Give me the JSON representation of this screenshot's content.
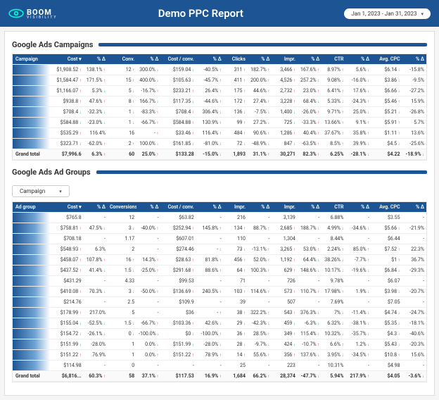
{
  "header": {
    "brand": "BOOM",
    "brand_sub": "VISIBILITY",
    "title": "Demo PPC Report",
    "date_range": "Jan 1, 2023 - Jan 31, 2023"
  },
  "section1": {
    "title": "Google Ads Campaigns",
    "columns": [
      "Campaign",
      "Cost ▾",
      "% Δ",
      "Conv.",
      "% Δ",
      "Cost / conv.",
      "% Δ",
      "Clicks",
      "% Δ",
      "Impr.",
      "% Δ",
      "CTR",
      "% Δ",
      "Avg. CPC",
      "% Δ"
    ],
    "rows": [
      [
        "",
        "$1,908.52",
        "138.1%",
        "12",
        "300.0%",
        "$159.04",
        "-40.5%",
        "311",
        "182.7%",
        "3,466",
        "167.6%",
        "8.97%",
        "5.6%",
        "$6.14",
        "-15.8%"
      ],
      [
        "",
        "$1,584.47",
        "171.5%",
        "15",
        "400.0%",
        "$105.63",
        "-45.7%",
        "411",
        "200.0%",
        "4,526",
        "257.2%",
        "9.08%",
        "-16.0%",
        "$3.86",
        "-9.5%"
      ],
      [
        "",
        "$1,166.07",
        "5.3%",
        "5",
        "-16.7%",
        "$233.21",
        "26.4%",
        "175",
        "44.6%",
        "2,732",
        "23.0%",
        "6.41%",
        "17.6%",
        "$6.66",
        "-27.2%"
      ],
      [
        "",
        "$938.8",
        "47.6%",
        "8",
        "166.7%",
        "$117.35",
        "-44.6%",
        "172",
        "27.4%",
        "3,228",
        "68.4%",
        "5.33%",
        "-24.3%",
        "$5.46",
        "15.9%"
      ],
      [
        "",
        "$708.4",
        "-32.3%",
        "1",
        "-83.3%",
        "$708.4",
        "306.4%",
        "136",
        "-7.5%",
        "1,400",
        "-26.0%",
        "9.71%",
        "25.0%",
        "$5.21",
        "-26.8%"
      ],
      [
        "",
        "$584.88",
        "-23.0%",
        "1",
        "-66.7%",
        "$584.88",
        "130.9%",
        "99",
        "27.2%",
        "725",
        "-33.3%",
        "13.66%",
        "9.1%",
        "$5.91",
        "5.7%"
      ],
      [
        "",
        "$535.29",
        "116.4%",
        "16",
        "-",
        "$33.46",
        "116.4%",
        "484",
        "90.6%",
        "1,286",
        "40.4%",
        "37.67%",
        "35.8%",
        "$1.11",
        "13.6%"
      ],
      [
        "",
        "$323.71",
        "-62.0%",
        "2",
        "100.0%",
        "$161.85",
        "-81.0%",
        "72",
        "-48.9%",
        "847",
        "-63.5%",
        "8.5%",
        "39.9%",
        "$4.5",
        "-25.6%"
      ]
    ],
    "row_dirs": [
      [
        "",
        "u",
        "u",
        "u",
        "d",
        "d",
        "u",
        "u",
        "u",
        "u",
        "u",
        "u",
        "d",
        "d"
      ],
      [
        "",
        "u",
        "u",
        "u",
        "d",
        "d",
        "u",
        "u",
        "u",
        "u",
        "d",
        "d",
        "d",
        "d"
      ],
      [
        "",
        "u",
        "d",
        "d",
        "u",
        "u",
        "u",
        "u",
        "u",
        "u",
        "u",
        "u",
        "d",
        "d"
      ],
      [
        "",
        "u",
        "u",
        "u",
        "d",
        "d",
        "u",
        "u",
        "u",
        "u",
        "d",
        "d",
        "u",
        "u"
      ],
      [
        "",
        "d",
        "d",
        "d",
        "u",
        "u",
        "d",
        "d",
        "d",
        "d",
        "u",
        "u",
        "d",
        "d"
      ],
      [
        "",
        "d",
        "d",
        "d",
        "u",
        "u",
        "u",
        "u",
        "d",
        "d",
        "u",
        "u",
        "u",
        "u"
      ],
      [
        "",
        "u",
        "",
        "",
        "u",
        "u",
        "u",
        "u",
        "u",
        "u",
        "u",
        "u",
        "u",
        "u"
      ],
      [
        "",
        "d",
        "u",
        "u",
        "d",
        "d",
        "d",
        "d",
        "d",
        "d",
        "u",
        "u",
        "d",
        "d"
      ]
    ],
    "total": [
      "Grand total",
      "$7,996.6",
      "6.3%",
      "60",
      "25.0%",
      "$133.28",
      "-15.0%",
      "1,893",
      "31.1%",
      "30,271",
      "82.3%",
      "6.25%",
      "-28.1%",
      "$4.22",
      "-18.9%"
    ],
    "total_dirs": [
      "",
      "",
      "u",
      "",
      "u",
      "",
      "d",
      "",
      "u",
      "",
      "u",
      "",
      "d",
      "",
      "d"
    ]
  },
  "section2": {
    "title": "Google Ads Ad Groups",
    "dropdown": "Campaign",
    "columns": [
      "Ad group",
      "Cost ▾",
      "% Δ",
      "Conversions",
      "% Δ",
      "Cost / conv.",
      "% Δ",
      "Impr.",
      "% Δ",
      "Impr.",
      "% Δ",
      "CTR",
      "% Δ",
      "Avg. CPC",
      "% Δ"
    ],
    "rows": [
      [
        "",
        "$765.8",
        "-",
        "12",
        "-",
        "$63.82",
        "-",
        "216",
        "-",
        "3,139",
        "-",
        "6.88%",
        "-",
        "$3.55",
        "-"
      ],
      [
        "",
        "$758.81",
        "47.5%",
        "3",
        "-40.0%",
        "$252.94",
        "145.8%",
        "134",
        "88.7%",
        "2,685",
        "188.7%",
        "4.99%",
        "-34.6%",
        "$5.66",
        "-21.9%"
      ],
      [
        "",
        "$708.18",
        "-",
        "1.17",
        "-",
        "$607.01",
        "-",
        "110",
        "-",
        "1,304",
        "-",
        "8.44%",
        "-",
        "$6.44",
        "-"
      ],
      [
        "",
        "$548.93",
        "6.3%",
        "2",
        "-",
        "$274.46",
        "-",
        "73",
        "-13.1%",
        "3,265",
        "53.0%",
        "2.24%",
        "85.0%",
        "$7.52",
        "22.3%"
      ],
      [
        "",
        "$458.07",
        "107.8%",
        "16",
        "14.3%",
        "$28.63",
        "81.8%",
        "456",
        "52.0%",
        "1,192",
        "64.4%",
        "38.26%",
        "-7.7%",
        "$1",
        "36.7%"
      ],
      [
        "",
        "$437.52",
        "41.4%",
        "1.5",
        "-25.0%",
        "$291.68",
        "88.6%",
        "64",
        "100.3%",
        "629",
        "148.6%",
        "10.17%",
        "-19.6%",
        "$6.84",
        "-29.3%"
      ],
      [
        "",
        "$431.29",
        "-",
        "4.33",
        "-",
        "$99.53",
        "-",
        "71",
        "-",
        "726",
        "-",
        "9.78%",
        "-",
        "$6.07",
        "-"
      ],
      [
        "",
        "$410.08",
        "70.3%",
        "3",
        "-50.0%",
        "$136.69",
        "240.5%",
        "103",
        "114.6%",
        "573",
        "110.7%",
        "17.98%",
        "1.9%",
        "$3.98",
        "-20.7%"
      ],
      [
        "",
        "$214.76",
        "-",
        "2.5",
        "-",
        "$109.9",
        "-",
        "39",
        "-",
        "507",
        "-",
        "7.69%",
        "-",
        "$7.05",
        "-"
      ],
      [
        "",
        "$178.99",
        "217.0%",
        "5",
        "-",
        "$36",
        "-",
        "38",
        "322.2%",
        "543",
        "376.3%",
        "7%",
        "-11.4%",
        "$4.74",
        "-24.7%"
      ],
      [
        "",
        "$155.04",
        "-52.5%",
        "1.5",
        "-66.7%",
        "$103.36",
        "42.6%",
        "29",
        "-42.3%",
        "459",
        "-6.3%",
        "6.32%",
        "-38.1%",
        "$5.35",
        "-18.1%"
      ],
      [
        "",
        "$154.72",
        "-26.1%",
        "0",
        "-100.0%",
        "$0",
        "-100.0%",
        "36",
        "28.5%",
        "349",
        "115.4%",
        "10.32%",
        "-35.7%",
        "$4.3",
        "-40.6%"
      ],
      [
        "",
        "$151.99",
        "-28.0%",
        "1",
        "0.0%",
        "$151.99",
        "-28.0%",
        "28",
        "-9.7%",
        "424",
        "-10.7%",
        "6.6%",
        "1.2%",
        "$5.43",
        "-20.3%"
      ],
      [
        "",
        "$151.22",
        "76.9%",
        "1",
        "0.0%",
        "$151.22",
        "78.9%",
        "14",
        "55.6%",
        "356",
        "137.6%",
        "3.95%",
        "-34.5%",
        "$10.8",
        "15.6%"
      ],
      [
        "",
        "$114.98",
        "-",
        "0",
        "-",
        "-",
        "-",
        "25",
        "-",
        "223",
        "-",
        "10.31%",
        "-",
        "$4.98",
        "-"
      ]
    ],
    "row_dirs": [
      [
        "",
        "",
        "",
        "",
        "",
        "",
        "",
        "",
        "",
        "",
        "",
        "",
        "",
        "",
        ""
      ],
      [
        "",
        "u",
        "d",
        "d",
        "u",
        "u",
        "u",
        "u",
        "u",
        "u",
        "d",
        "d",
        "d",
        "d",
        ""
      ],
      [
        "",
        "",
        "",
        "",
        "",
        "",
        "",
        "",
        "",
        "",
        "",
        "",
        "",
        "",
        ""
      ],
      [
        "",
        "u",
        "",
        "",
        "",
        "",
        "d",
        "d",
        "u",
        "u",
        "u",
        "u",
        "u",
        "u",
        ""
      ],
      [
        "",
        "u",
        "u",
        "u",
        "u",
        "u",
        "u",
        "u",
        "u",
        "u",
        "d",
        "d",
        "u",
        "u",
        ""
      ],
      [
        "",
        "u",
        "d",
        "d",
        "u",
        "u",
        "u",
        "u",
        "u",
        "u",
        "d",
        "d",
        "d",
        "d",
        ""
      ],
      [
        "",
        "",
        "",
        "",
        "",
        "",
        "",
        "",
        "",
        "",
        "",
        "",
        "",
        "",
        ""
      ],
      [
        "",
        "u",
        "d",
        "d",
        "u",
        "u",
        "u",
        "u",
        "u",
        "u",
        "u",
        "u",
        "d",
        "d",
        ""
      ],
      [
        "",
        "",
        "",
        "",
        "",
        "",
        "",
        "",
        "",
        "",
        "",
        "",
        "",
        "",
        ""
      ],
      [
        "",
        "u",
        "",
        "",
        "",
        "",
        "u",
        "u",
        "u",
        "u",
        "d",
        "d",
        "d",
        "d",
        ""
      ],
      [
        "",
        "d",
        "d",
        "d",
        "u",
        "u",
        "d",
        "d",
        "d",
        "d",
        "d",
        "d",
        "d",
        "d",
        ""
      ],
      [
        "",
        "d",
        "d",
        "d",
        "d",
        "d",
        "u",
        "u",
        "u",
        "u",
        "d",
        "d",
        "d",
        "d",
        ""
      ],
      [
        "",
        "d",
        "",
        "",
        "d",
        "d",
        "d",
        "d",
        "d",
        "d",
        "u",
        "u",
        "d",
        "d",
        ""
      ],
      [
        "",
        "u",
        "",
        "",
        "u",
        "u",
        "u",
        "u",
        "u",
        "u",
        "d",
        "d",
        "u",
        "u",
        ""
      ],
      [
        "",
        "",
        "",
        "",
        "",
        "",
        "",
        "",
        "",
        "",
        "",
        "",
        "",
        "",
        ""
      ]
    ],
    "total": [
      "Grand total",
      "$6,816...",
      "60.3%",
      "58",
      "37.1%",
      "$117.53",
      "16.9%",
      "1,684",
      "66.2%",
      "28,374",
      "-47.7%",
      "5.94%",
      "217.9%",
      "$4.05",
      "-3.6%"
    ],
    "total_dirs": [
      "",
      "",
      "u",
      "",
      "u",
      "",
      "u",
      "",
      "u",
      "",
      "d",
      "",
      "u",
      "",
      "d"
    ]
  }
}
